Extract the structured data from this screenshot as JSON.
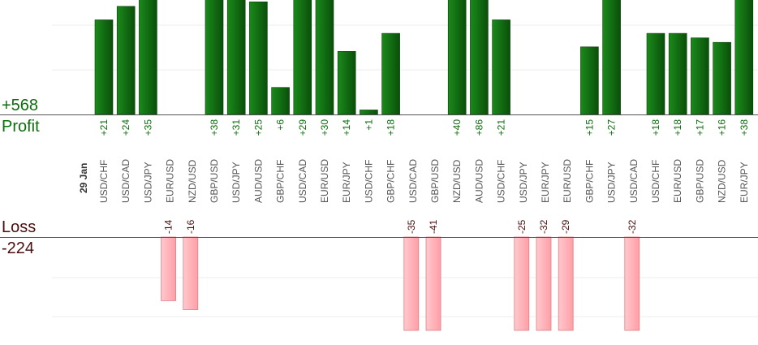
{
  "summary": {
    "profit_total": "+568",
    "profit_label": "Profit",
    "loss_label": "Loss",
    "loss_total": "-224"
  },
  "colors": {
    "profit_bar_dark": "#0a4f0a",
    "profit_bar_light": "#1a8a1a",
    "profit_text": "#0b6e0b",
    "loss_bar_fill": "#ffb3b8",
    "loss_bar_stroke": "#e07f86",
    "loss_text": "#4a0e0e",
    "axis": "#555555",
    "grid": "#ececec",
    "pair_label": "#555555"
  },
  "chart_data": {
    "type": "bar",
    "date_label": "29 Jan",
    "categories": [
      "USD/CHF",
      "USD/CAD",
      "USD/JPY",
      "EUR/USD",
      "NZD/USD",
      "GBP/USD",
      "USD/JPY",
      "AUD/USD",
      "GBP/CHF",
      "USD/CAD",
      "EUR/USD",
      "EUR/JPY",
      "USD/CHF",
      "GBP/CHF",
      "USD/CAD",
      "GBP/USD",
      "NZD/USD",
      "AUD/USD",
      "USD/CHF",
      "USD/JPY",
      "EUR/JPY",
      "EUR/USD",
      "GBP/CHF",
      "USD/JPY",
      "USD/CAD",
      "USD/CHF",
      "EUR/USD",
      "GBP/USD",
      "NZD/USD",
      "EUR/JPY"
    ],
    "values": [
      21,
      24,
      35,
      -14,
      -16,
      38,
      31,
      25,
      6,
      29,
      30,
      14,
      1,
      18,
      -35,
      -41,
      40,
      86,
      21,
      -25,
      -32,
      -29,
      15,
      27,
      -32,
      18,
      18,
      17,
      16,
      38
    ],
    "series": [
      {
        "name": "Profit",
        "values": [
          21,
          24,
          35,
          null,
          null,
          38,
          31,
          25,
          6,
          29,
          30,
          14,
          1,
          18,
          null,
          null,
          40,
          86,
          21,
          null,
          null,
          null,
          15,
          27,
          null,
          18,
          18,
          17,
          16,
          38
        ]
      },
      {
        "name": "Loss",
        "values": [
          null,
          null,
          null,
          -14,
          -16,
          null,
          null,
          null,
          null,
          null,
          null,
          null,
          null,
          null,
          -35,
          -41,
          null,
          null,
          null,
          -25,
          -32,
          -29,
          null,
          null,
          -32,
          null,
          null,
          null,
          null,
          null
        ]
      }
    ],
    "value_labels": [
      "+21",
      "+24",
      "+35",
      "-14",
      "-16",
      "+38",
      "+31",
      "+25",
      "+6",
      "+29",
      "+30",
      "+14",
      "+1",
      "+18",
      "-35",
      "-41",
      "+40",
      "+86",
      "+21",
      "-25",
      "-32",
      "-29",
      "+15",
      "+27",
      "-32",
      "+18",
      "+18",
      "+17",
      "+16",
      "+38"
    ],
    "grid": true,
    "profit_axis_visible_max": 26,
    "loss_axis_visible_max": 21
  }
}
